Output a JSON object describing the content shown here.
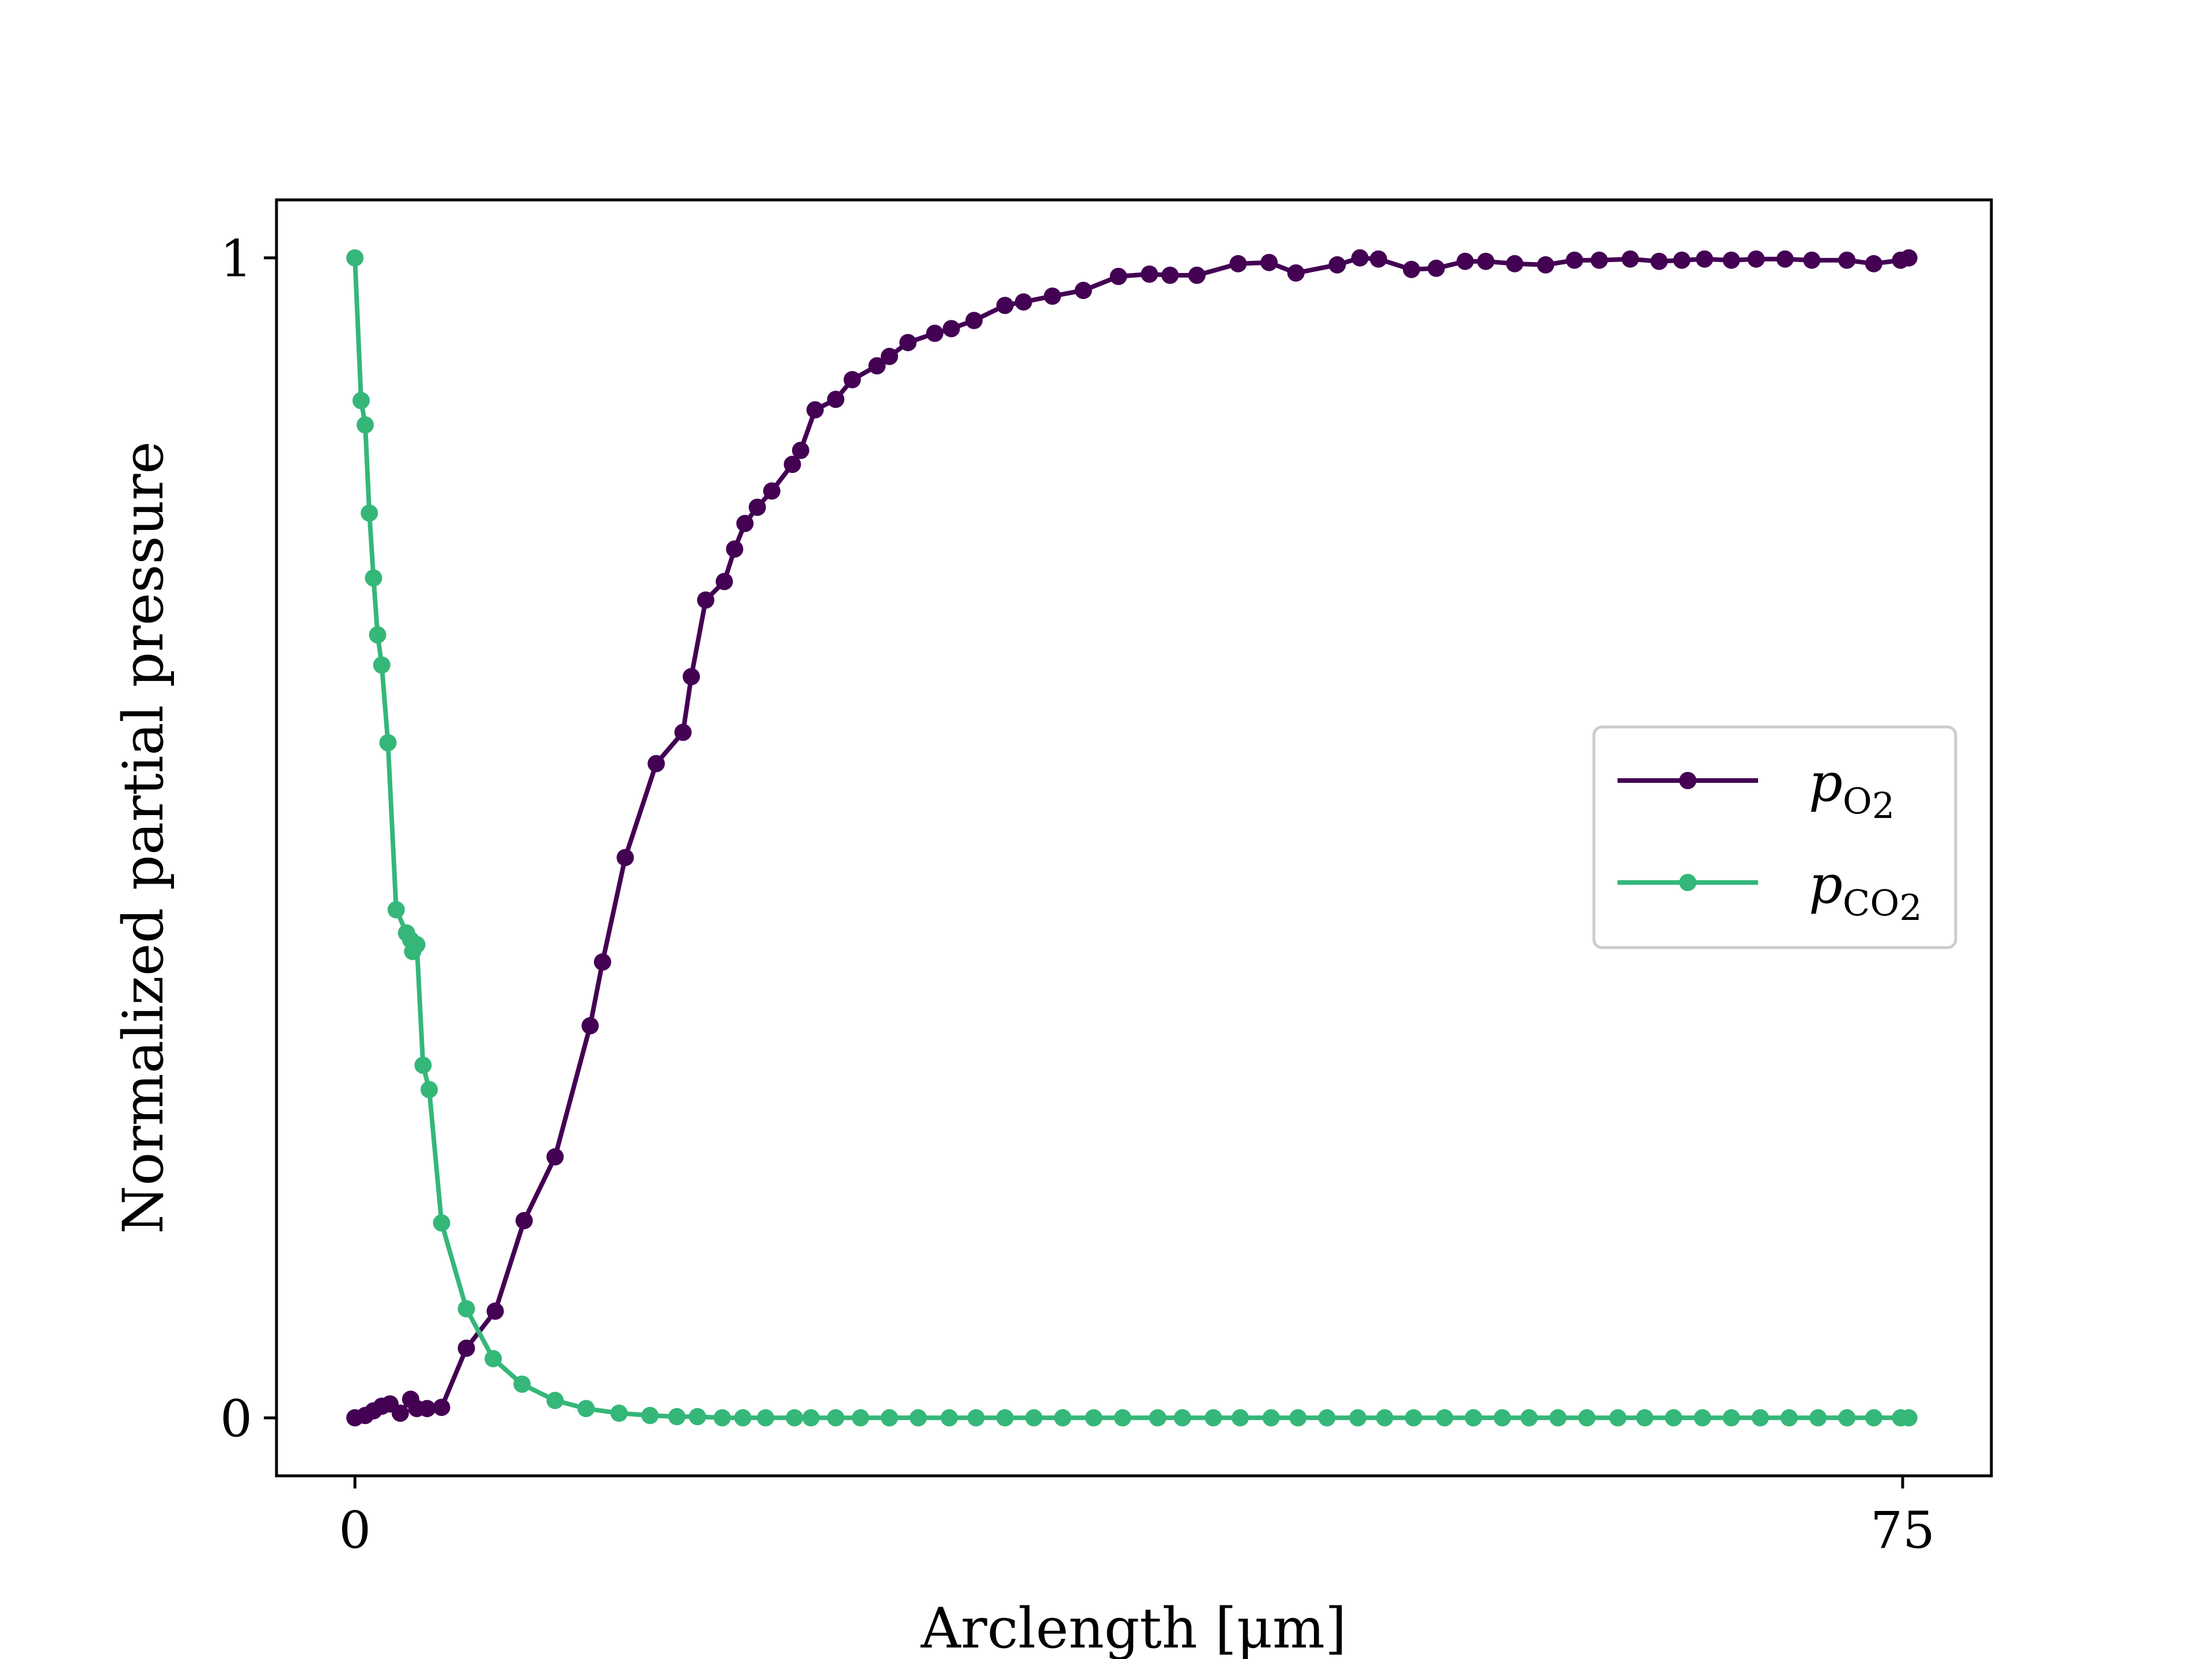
{
  "chart_data": {
    "type": "line",
    "xlabel": "Arclength [μm]",
    "ylabel": "Normalized partial pressure",
    "xlim": [
      -3.8,
      79.3
    ],
    "ylim": [
      -0.05,
      1.05
    ],
    "xticks": [
      0,
      75
    ],
    "xtick_labels": [
      "0",
      "75"
    ],
    "yticks": [
      0,
      1
    ],
    "ytick_labels": [
      "0",
      "1"
    ],
    "grid": false,
    "legend_position": "center-right",
    "series": [
      {
        "name": "p_O2",
        "legend_base": "p",
        "legend_sub": "O",
        "legend_subsub": "2",
        "color": "#440154",
        "x": [
          0,
          0.5,
          0.9,
          1.3,
          1.7,
          2.2,
          2.7,
          3.0,
          3.5,
          4.2,
          5.4,
          6.8,
          8.2,
          9.7,
          11.4,
          12.0,
          13.1,
          14.6,
          15.9,
          16.3,
          17.0,
          17.9,
          18.4,
          18.9,
          19.5,
          20.2,
          21.2,
          21.6,
          22.3,
          23.3,
          24.1,
          25.3,
          25.9,
          26.8,
          28.1,
          28.9,
          30.0,
          31.5,
          32.4,
          33.8,
          35.3,
          37.0,
          38.5,
          39.5,
          40.8,
          42.8,
          44.3,
          45.6,
          47.6,
          48.7,
          49.6,
          51.2,
          52.4,
          53.8,
          54.8,
          56.2,
          57.7,
          59.1,
          60.3,
          61.8,
          63.2,
          64.3,
          65.4,
          66.7,
          67.9,
          69.3,
          70.6,
          72.3,
          73.6,
          74.9,
          75.3
        ],
        "y": [
          0,
          0.002,
          0.006,
          0.01,
          0.012,
          0.004,
          0.016,
          0.008,
          0.008,
          0.009,
          0.06,
          0.092,
          0.17,
          0.225,
          0.338,
          0.393,
          0.483,
          0.564,
          0.591,
          0.639,
          0.705,
          0.721,
          0.749,
          0.771,
          0.785,
          0.799,
          0.822,
          0.834,
          0.869,
          0.878,
          0.895,
          0.907,
          0.915,
          0.927,
          0.935,
          0.939,
          0.946,
          0.959,
          0.962,
          0.967,
          0.972,
          0.984,
          0.986,
          0.985,
          0.985,
          0.995,
          0.996,
          0.987,
          0.994,
          1.0,
          0.999,
          0.99,
          0.991,
          0.997,
          0.997,
          0.995,
          0.994,
          0.998,
          0.998,
          0.999,
          0.997,
          0.998,
          0.999,
          0.998,
          0.999,
          0.999,
          0.998,
          0.998,
          0.995,
          0.998,
          1.0
        ]
      },
      {
        "name": "p_CO2",
        "legend_base": "p",
        "legend_sub": "CO",
        "legend_subsub": "2",
        "color": "#35b779",
        "x": [
          0,
          0.3,
          0.5,
          0.7,
          0.9,
          1.1,
          1.3,
          1.6,
          2.0,
          2.5,
          2.7,
          2.8,
          3.0,
          3.3,
          3.6,
          4.2,
          5.4,
          6.7,
          8.1,
          9.7,
          11.2,
          12.8,
          14.3,
          15.6,
          16.6,
          17.8,
          18.8,
          19.9,
          21.3,
          22.1,
          23.3,
          24.5,
          25.9,
          27.3,
          28.8,
          30.1,
          31.5,
          32.9,
          34.3,
          35.8,
          37.2,
          38.9,
          40.1,
          41.6,
          42.9,
          44.4,
          45.7,
          47.1,
          48.6,
          49.9,
          51.3,
          52.8,
          54.2,
          55.6,
          56.9,
          58.3,
          59.7,
          61.2,
          62.5,
          63.9,
          65.3,
          66.7,
          68.1,
          69.5,
          70.9,
          72.3,
          73.6,
          74.9,
          75.3
        ],
        "y": [
          1.0,
          0.877,
          0.856,
          0.78,
          0.724,
          0.675,
          0.649,
          0.582,
          0.438,
          0.418,
          0.412,
          0.402,
          0.408,
          0.304,
          0.283,
          0.168,
          0.094,
          0.051,
          0.029,
          0.015,
          0.008,
          0.004,
          0.002,
          0.001,
          0.001,
          0,
          0,
          0,
          0,
          0,
          0,
          0,
          0,
          0,
          0,
          0,
          0,
          0,
          0,
          0,
          0,
          0,
          0,
          0,
          0,
          0,
          0,
          0,
          0,
          0,
          0,
          0,
          0,
          0,
          0,
          0,
          0,
          0,
          0,
          0,
          0,
          0,
          0,
          0,
          0,
          0,
          0,
          0,
          0
        ]
      }
    ]
  }
}
